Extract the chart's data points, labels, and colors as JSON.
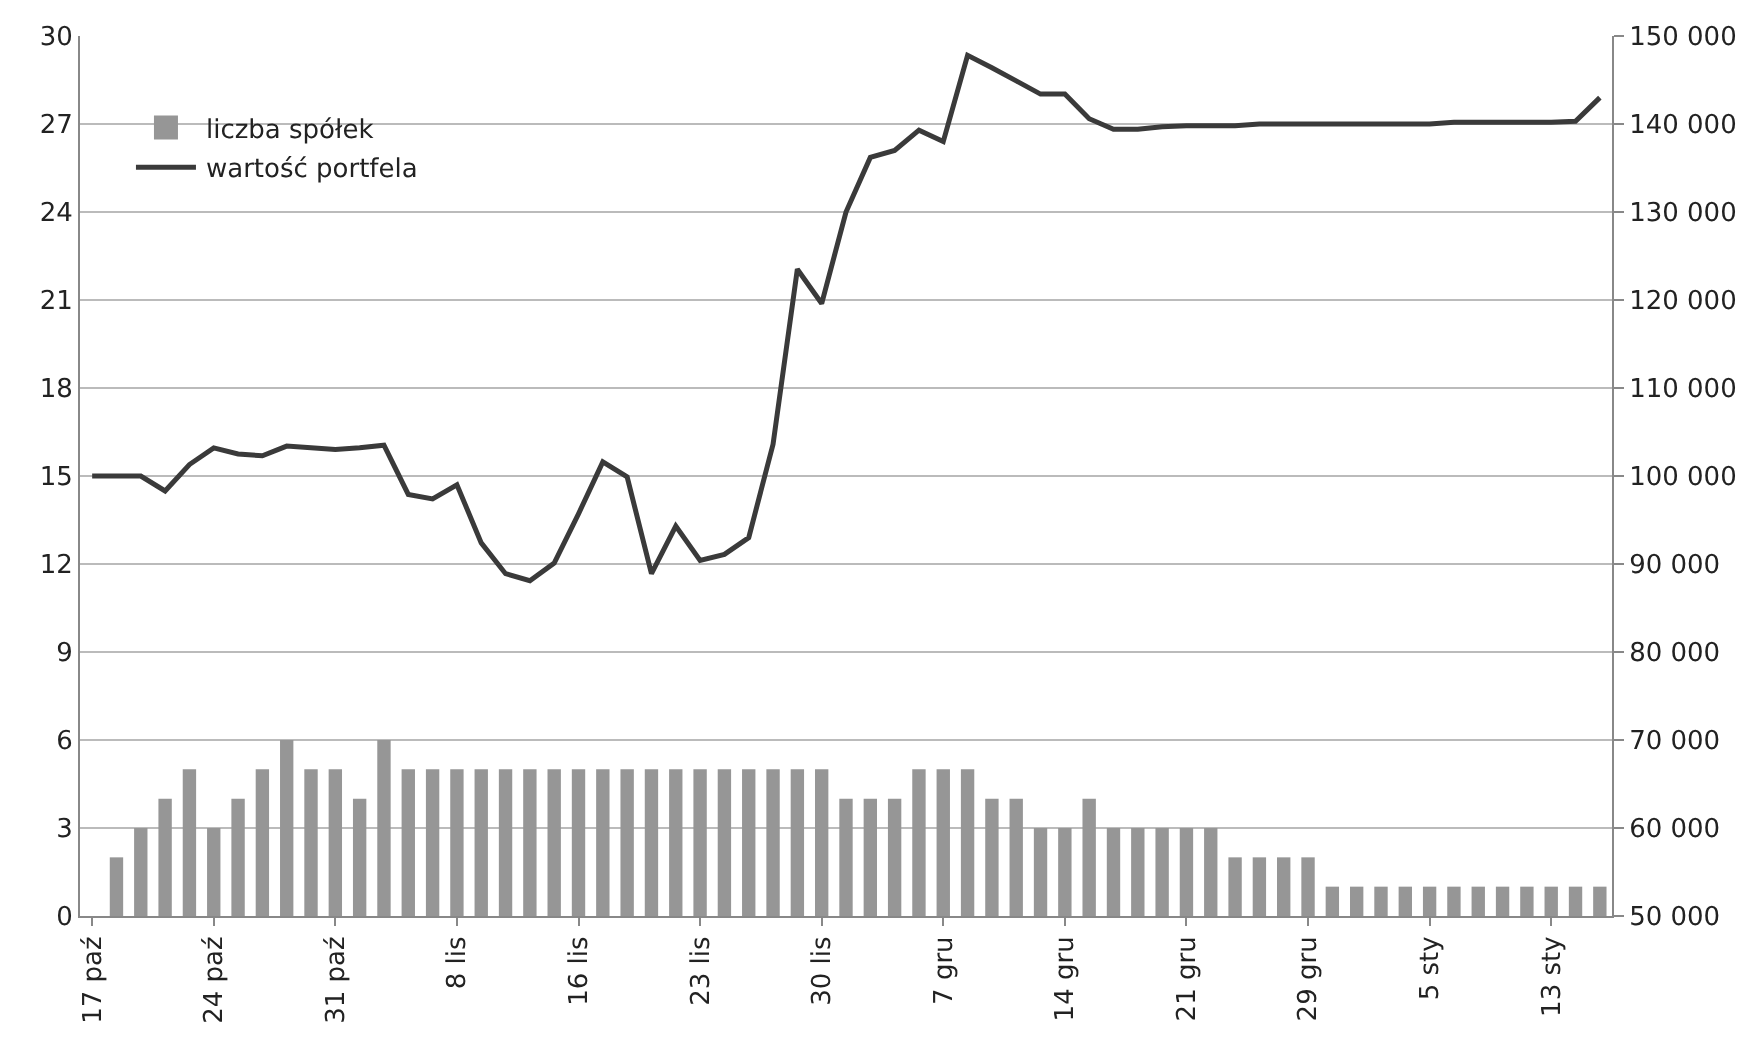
{
  "chart_data": {
    "type": "bar",
    "categories": [
      "17 paź",
      null,
      null,
      null,
      null,
      "24 paź",
      null,
      null,
      null,
      null,
      "31 paź",
      null,
      null,
      null,
      null,
      "8 lis",
      null,
      null,
      null,
      null,
      "16 lis",
      null,
      null,
      null,
      null,
      "23 lis",
      null,
      null,
      null,
      null,
      "30 lis",
      null,
      null,
      null,
      null,
      "7 gru",
      null,
      null,
      null,
      null,
      "14 gru",
      null,
      null,
      null,
      null,
      "21 gru",
      null,
      null,
      null,
      null,
      "29 gru",
      null,
      null,
      null,
      null,
      "5 sty",
      null,
      null,
      null,
      null,
      "13 sty",
      null,
      null
    ],
    "series": [
      {
        "name": "liczba spółek",
        "color": "#969696",
        "values": [
          0,
          2,
          3,
          4,
          5,
          3,
          4,
          5,
          6,
          5,
          5,
          4,
          6,
          5,
          5,
          5,
          5,
          5,
          5,
          5,
          5,
          5,
          5,
          5,
          5,
          5,
          5,
          5,
          5,
          5,
          5,
          4,
          4,
          4,
          5,
          5,
          5,
          4,
          4,
          3,
          3,
          4,
          3,
          3,
          3,
          3,
          3,
          2,
          2,
          2,
          2,
          1,
          1,
          1,
          1,
          1,
          1,
          1,
          1,
          1,
          1,
          1,
          1
        ]
      },
      {
        "name": "wartość portfela",
        "type": "line",
        "axis": "y2",
        "color": "#3a3a3a",
        "values": [
          100000,
          100000,
          100000,
          98300,
          101300,
          103200,
          102500,
          102300,
          103400,
          103200,
          103000,
          103200,
          103500,
          97900,
          97400,
          99000,
          92400,
          88900,
          88100,
          90100,
          95700,
          101600,
          99900,
          88900,
          94300,
          90400,
          91100,
          93000,
          103600,
          123500,
          119600,
          130000,
          136200,
          137000,
          139300,
          138000,
          147800,
          146400,
          144900,
          143400,
          143400,
          140600,
          139400,
          139400,
          139700,
          139800,
          139800,
          139800,
          140000,
          140000,
          140000,
          140000,
          140000,
          140000,
          140000,
          140000,
          140200,
          140200,
          140200,
          140200,
          140200,
          140300,
          143000
        ]
      }
    ],
    "ylim": [
      0,
      30
    ],
    "yticks": [
      0,
      3,
      6,
      9,
      12,
      15,
      18,
      21,
      24,
      27,
      30
    ],
    "y2lim": [
      50000,
      150000
    ],
    "y2ticks": [
      {
        "value": 50000,
        "label": "50 000"
      },
      {
        "value": 60000,
        "label": "60 000"
      },
      {
        "value": 70000,
        "label": "70 000"
      },
      {
        "value": 80000,
        "label": "80 000"
      },
      {
        "value": 90000,
        "label": "90 000"
      },
      {
        "value": 100000,
        "label": "100 000"
      },
      {
        "value": 110000,
        "label": "110 000"
      },
      {
        "value": 120000,
        "label": "120 000"
      },
      {
        "value": 130000,
        "label": "130 000"
      },
      {
        "value": 140000,
        "label": "140 000"
      },
      {
        "value": 150000,
        "label": "150 000"
      }
    ],
    "grid": "y",
    "legend": "top left",
    "marker": "none",
    "line_style": "solid"
  }
}
